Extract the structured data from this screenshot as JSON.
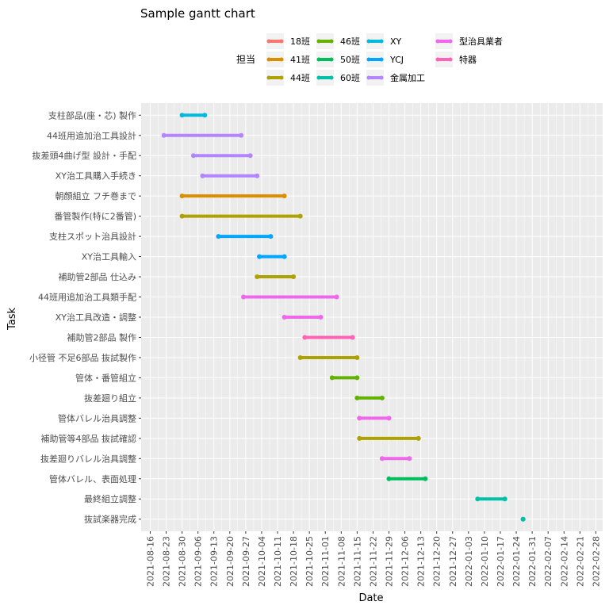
{
  "chart_data": {
    "type": "gantt",
    "title": "Sample gantt chart",
    "xlabel": "Date",
    "ylabel": "Task",
    "xlim": [
      "2021-08-12",
      "2022-03-03"
    ],
    "x_ticks": [
      "2021-08-16",
      "2021-08-23",
      "2021-08-30",
      "2021-09-06",
      "2021-09-13",
      "2021-09-20",
      "2021-09-27",
      "2021-10-04",
      "2021-10-11",
      "2021-10-18",
      "2021-10-25",
      "2021-11-01",
      "2021-11-08",
      "2021-11-15",
      "2021-11-22",
      "2021-11-29",
      "2021-12-06",
      "2021-12-13",
      "2021-12-20",
      "2021-12-27",
      "2022-01-03",
      "2022-01-10",
      "2022-01-17",
      "2022-01-24",
      "2022-01-31",
      "2022-02-07",
      "2022-02-14",
      "2022-02-21",
      "2022-02-28"
    ],
    "grid": true,
    "legend": {
      "title": "担当",
      "position": "top",
      "entries": [
        {
          "name": "18班",
          "color": "#F8766D"
        },
        {
          "name": "41班",
          "color": "#DB8E00"
        },
        {
          "name": "44班",
          "color": "#AEA200"
        },
        {
          "name": "46班",
          "color": "#64B200"
        },
        {
          "name": "50班",
          "color": "#00BD5C"
        },
        {
          "name": "60班",
          "color": "#00C1A7"
        },
        {
          "name": "XY",
          "color": "#00BADE"
        },
        {
          "name": "YCJ",
          "color": "#00A6FF"
        },
        {
          "name": "金属加工",
          "color": "#B385FF"
        },
        {
          "name": "型治具業者",
          "color": "#EF67EB"
        },
        {
          "name": "特器",
          "color": "#FF63B6"
        }
      ]
    },
    "tasks": [
      {
        "task": "支柱部品(座・芯) 製作",
        "start": "2021-08-30",
        "end": "2021-09-09",
        "group": "XY"
      },
      {
        "task": "44班用追加治工具設計",
        "start": "2021-08-22",
        "end": "2021-09-25",
        "group": "金属加工"
      },
      {
        "task": "抜差頭4曲げ型 設計・手配",
        "start": "2021-09-04",
        "end": "2021-09-29",
        "group": "金属加工"
      },
      {
        "task": "XY治工具購入手続き",
        "start": "2021-09-08",
        "end": "2021-10-02",
        "group": "金属加工"
      },
      {
        "task": "朝顔組立 フチ巻まで",
        "start": "2021-08-30",
        "end": "2021-10-14",
        "group": "41班"
      },
      {
        "task": "番管製作(特に2番管)",
        "start": "2021-08-30",
        "end": "2021-10-21",
        "group": "44班"
      },
      {
        "task": "支柱スポット治具設計",
        "start": "2021-09-15",
        "end": "2021-10-08",
        "group": "YCJ"
      },
      {
        "task": "XY治工具輸入",
        "start": "2021-10-03",
        "end": "2021-10-14",
        "group": "YCJ"
      },
      {
        "task": "補助管2部品 仕込み",
        "start": "2021-10-02",
        "end": "2021-10-18",
        "group": "44班"
      },
      {
        "task": "44班用追加治工具類手配",
        "start": "2021-09-26",
        "end": "2021-11-06",
        "group": "型治具業者"
      },
      {
        "task": "XY治工具改造・調整",
        "start": "2021-10-14",
        "end": "2021-10-30",
        "group": "型治具業者"
      },
      {
        "task": "補助管2部品 製作",
        "start": "2021-10-23",
        "end": "2021-11-13",
        "group": "特器"
      },
      {
        "task": "小径管 不足6部品 抜試製作",
        "start": "2021-10-21",
        "end": "2021-11-15",
        "group": "44班"
      },
      {
        "task": "管体・番管組立",
        "start": "2021-11-04",
        "end": "2021-11-15",
        "group": "46班"
      },
      {
        "task": "抜差廻り組立",
        "start": "2021-11-15",
        "end": "2021-11-26",
        "group": "46班"
      },
      {
        "task": "管体バレル治具調整",
        "start": "2021-11-16",
        "end": "2021-11-29",
        "group": "型治具業者"
      },
      {
        "task": "補助管等4部品 抜試確認",
        "start": "2021-11-16",
        "end": "2021-12-12",
        "group": "44班"
      },
      {
        "task": "抜差廻りバレル治具調整",
        "start": "2021-11-26",
        "end": "2021-12-08",
        "group": "型治具業者"
      },
      {
        "task": "管体バレル、表面処理",
        "start": "2021-11-29",
        "end": "2021-12-15",
        "group": "50班"
      },
      {
        "task": "最終組立調整",
        "start": "2022-01-07",
        "end": "2022-01-19",
        "group": "60班"
      },
      {
        "task": "抜試楽器完成",
        "start": "2022-01-27",
        "end": "2022-01-27",
        "group": "60班"
      }
    ]
  }
}
